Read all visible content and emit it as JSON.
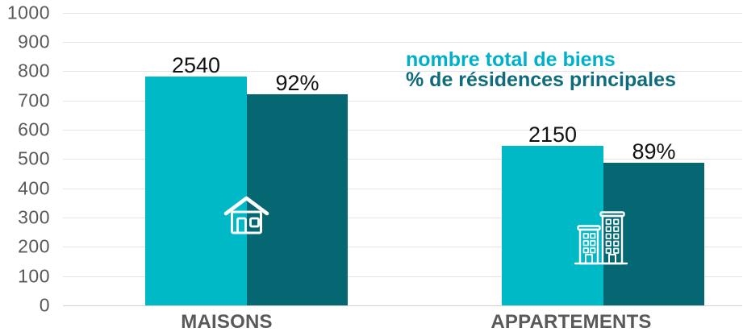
{
  "chart_data": {
    "type": "bar",
    "categories": [
      "MAISONS",
      "APPARTEMENTS"
    ],
    "series": [
      {
        "name": "nombre total de biens",
        "data_labels": [
          "2540",
          "2150"
        ],
        "values": [
          2540,
          2150
        ],
        "plotted_bar_heights_axis_units": [
          781,
          545
        ],
        "color": "#00b9c6"
      },
      {
        "name": "% de résidences principales",
        "data_labels": [
          "92%",
          "89%"
        ],
        "values": [
          92,
          89
        ],
        "plotted_bar_heights_axis_units": [
          720,
          488
        ],
        "color": "#056772"
      }
    ],
    "ylim": [
      0,
      1000
    ],
    "ytick_step": 100,
    "ytick_labels": [
      "0",
      "100",
      "200",
      "300",
      "400",
      "500",
      "600",
      "700",
      "800",
      "900",
      "1000"
    ],
    "grid": true,
    "legend_position": "top-right",
    "bar_icons": [
      "house-icon",
      "building-icon"
    ]
  },
  "legend": {
    "line1": "nombre total de biens",
    "line2": "% de résidences principales"
  },
  "colors": {
    "series1_bar": "#00b9c6",
    "series2_bar": "#056772",
    "legend_line1_text": "#00b0cb",
    "legend_line2_text": "#106b7b",
    "value_label_text": "#121212",
    "axis_text": "#58595a",
    "gridline": "#e4e4e4",
    "zero_line": "#d2d2d2",
    "icon_stroke": "#ffffff"
  }
}
